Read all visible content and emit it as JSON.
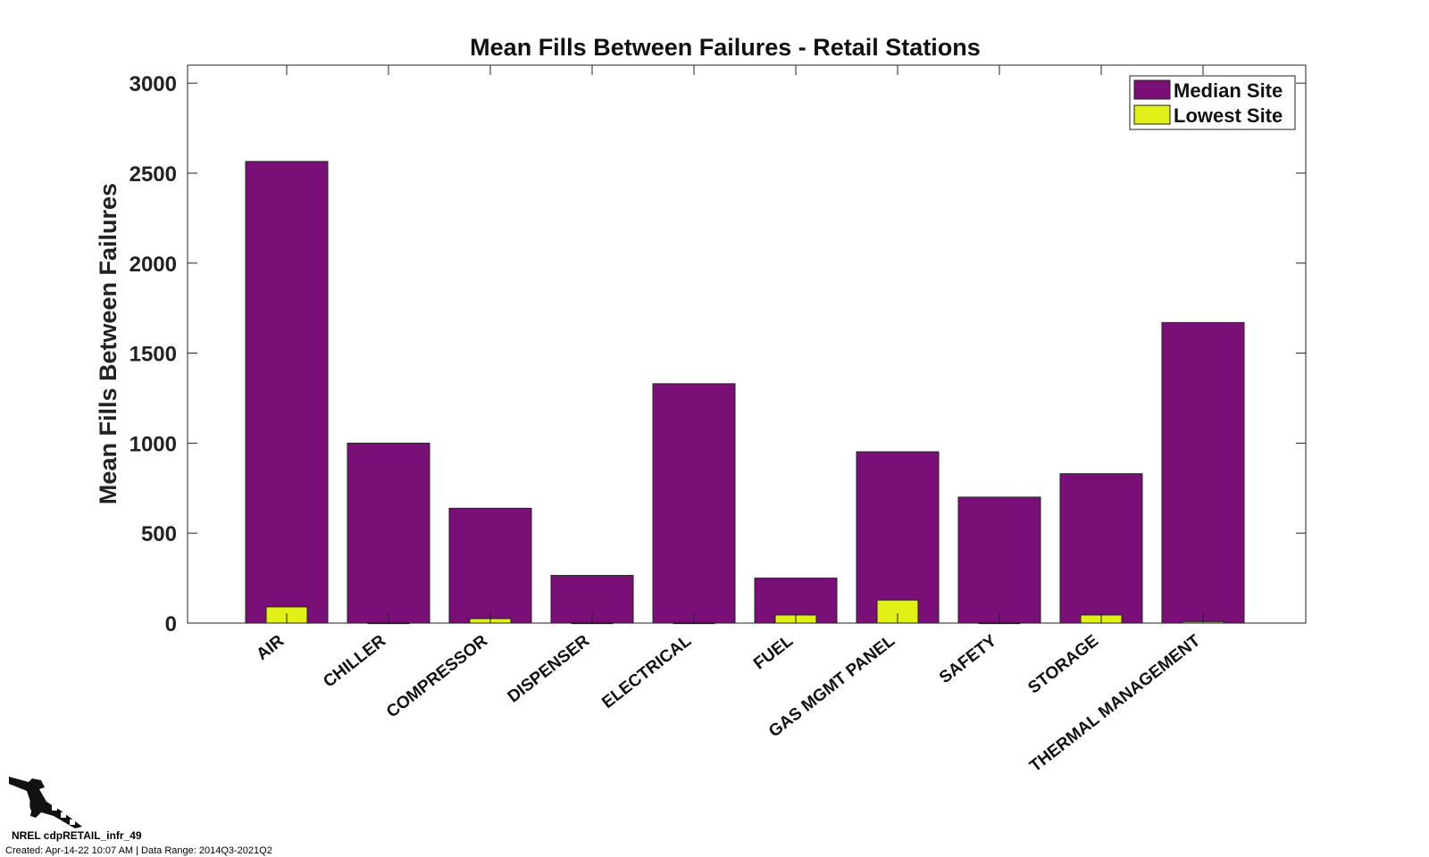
{
  "chart_data": {
    "type": "bar",
    "title": "Mean Fills Between Failures - Retail Stations",
    "xlabel": "",
    "ylabel": "Mean Fills Between Failures",
    "ylim": [
      0,
      3100
    ],
    "yticks": [
      0,
      500,
      1000,
      1500,
      2000,
      2500,
      3000
    ],
    "categories": [
      "AIR",
      "CHILLER",
      "COMPRESSOR",
      "DISPENSER",
      "ELECTRICAL",
      "FUEL",
      "GAS MGMT PANEL",
      "SAFETY",
      "STORAGE",
      "THERMAL MANAGEMENT"
    ],
    "series": [
      {
        "name": "Median Site",
        "color": "#7b0f78",
        "values": [
          2565,
          1000,
          638,
          265,
          1330,
          250,
          952,
          700,
          830,
          1670
        ]
      },
      {
        "name": "Lowest Site",
        "color": "#e1f016",
        "values": [
          90,
          2,
          25,
          2,
          2,
          45,
          128,
          2,
          45,
          8
        ]
      }
    ],
    "legend_position": "top-right",
    "grid": false
  },
  "footer": {
    "id_label": "NREL cdpRETAIL_infr_49",
    "created_label": "Created: Apr-14-22 10:07 AM | Data Range: 2014Q3-2021Q2"
  },
  "logo": {
    "icon": "fuel-nozzle-icon"
  }
}
